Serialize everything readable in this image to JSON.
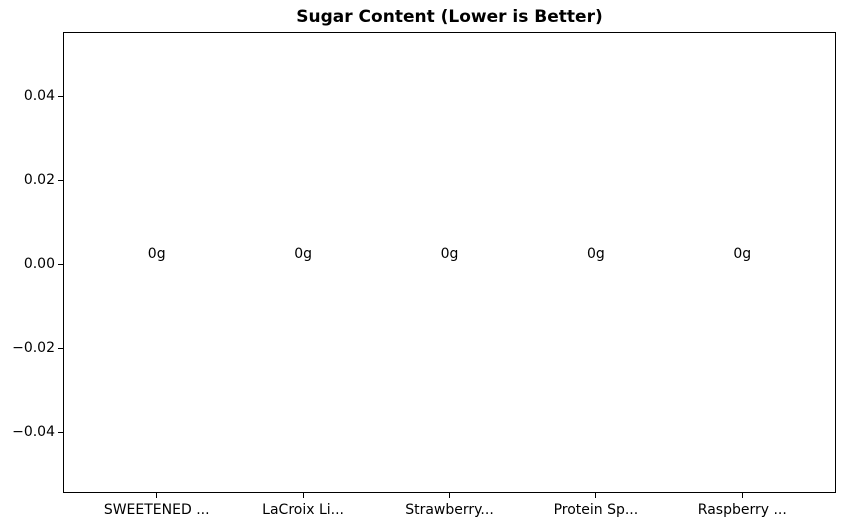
{
  "chart_data": {
    "type": "bar",
    "title": "Sugar Content (Lower is Better)",
    "categories": [
      "SWEETENED ...",
      "LaCroix Li...",
      "Strawberry...",
      "Protein Sp...",
      "Raspberry ..."
    ],
    "values": [
      0,
      0,
      0,
      0,
      0
    ],
    "bar_labels": [
      "0g",
      "0g",
      "0g",
      "0g",
      "0g"
    ],
    "xlabel": "",
    "ylabel": "",
    "xlim": [
      -0.64,
      4.64
    ],
    "ylim": [
      -0.0545,
      0.0555
    ],
    "yticks": [
      -0.04,
      -0.02,
      0.0,
      0.02,
      0.04
    ],
    "ytick_labels": [
      "−0.04",
      "−0.02",
      "0.00",
      "0.02",
      "0.04"
    ],
    "grid": false,
    "legend": null
  },
  "colors": {
    "text": "#000000",
    "spine": "#000000",
    "background": "#ffffff"
  }
}
